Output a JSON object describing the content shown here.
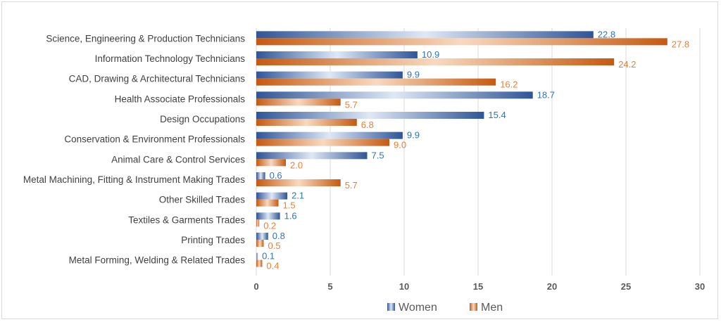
{
  "chart_data": {
    "type": "bar",
    "orientation": "horizontal",
    "categories": [
      "Science, Engineering & Production Technicians",
      "Information Technology Technicians",
      "CAD, Drawing & Architectural Technicians",
      "Health Associate Professionals",
      "Design Occupations",
      "Conservation & Environment Professionals",
      "Animal Care & Control Services",
      "Metal Machining, Fitting & Instrument Making Trades",
      "Other Skilled Trades",
      "Textiles & Garments Trades",
      "Printing Trades",
      "Metal Forming, Welding & Related Trades"
    ],
    "series": [
      {
        "name": "Women",
        "color": "#2f5597",
        "label_color": "#2e75b6",
        "values": [
          22.8,
          10.9,
          9.9,
          18.7,
          15.4,
          9.9,
          7.5,
          0.6,
          2.1,
          1.6,
          0.8,
          0.1
        ],
        "labels": [
          "22.8",
          "10.9",
          "9.9",
          "18.7",
          "15.4",
          "9.9",
          "7.5",
          "0.6",
          "2.1",
          "1.6",
          "0.8",
          "0.1"
        ]
      },
      {
        "name": "Men",
        "color": "#c55a11",
        "label_color": "#ed7d31",
        "values": [
          27.8,
          24.2,
          16.2,
          5.7,
          6.8,
          9.0,
          2.0,
          5.7,
          1.5,
          0.2,
          0.5,
          0.4
        ],
        "labels": [
          "27.8",
          "24.2",
          "16.2",
          "5.7",
          "6.8",
          "9.0",
          "2.0",
          "5.7",
          "1.5",
          "0.2",
          "0.5",
          "0.4"
        ]
      }
    ],
    "xlim": [
      0,
      30
    ],
    "xticks": [
      "0",
      "5",
      "10",
      "15",
      "20",
      "25",
      "30"
    ],
    "grid": true,
    "legend_position": "bottom",
    "title": "",
    "xlabel": "",
    "ylabel": ""
  }
}
